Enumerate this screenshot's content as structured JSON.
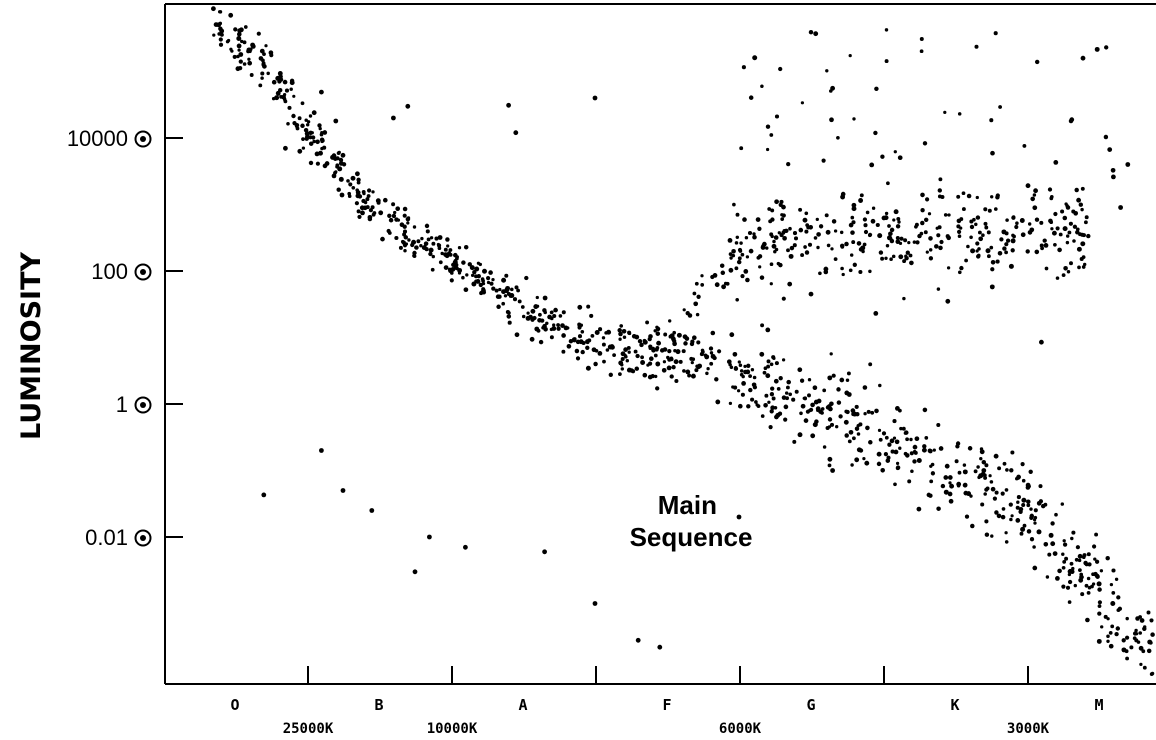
{
  "chart_data": {
    "type": "scatter",
    "title": "",
    "ylabel": "LUMINOSITY",
    "xlabel": "",
    "y_scale": "log",
    "ylim": [
      0.0002,
      1000000
    ],
    "sun_symbol": "⊙",
    "y_ticks": [
      {
        "value": 10000,
        "label": "10000"
      },
      {
        "value": 100,
        "label": "100"
      },
      {
        "value": 1,
        "label": "1"
      },
      {
        "value": 0.01,
        "label": "0.01"
      }
    ],
    "spectral_classes": [
      "O",
      "B",
      "A",
      "F",
      "G",
      "K",
      "M"
    ],
    "temperature_labels": [
      {
        "label": "25000K",
        "temperature_K": 25000
      },
      {
        "label": "10000K",
        "temperature_K": 10000
      },
      {
        "label": "6000K",
        "temperature_K": 6000
      },
      {
        "label": "3000K",
        "temperature_K": 3000
      }
    ],
    "annotations": [
      {
        "text": "Main Sequence",
        "lines": [
          "Main",
          "Sequence"
        ]
      }
    ],
    "grid": false,
    "legend": "none",
    "series": [
      {
        "x_units": "spectral class position (O=0 ... M=6)",
        "y_units": "solar luminosity",
        "points": [
          [
            -0.15,
            880000
          ],
          [
            -0.03,
            700000
          ],
          [
            0.04,
            180000
          ],
          [
            0.02,
            110000
          ],
          [
            0.3,
            47000
          ],
          [
            0.6,
            49000
          ],
          [
            0.55,
            24000
          ],
          [
            0.7,
            18000
          ],
          [
            0.75,
            5500
          ],
          [
            0.85,
            2900
          ],
          [
            1.2,
            30000
          ],
          [
            0.35,
            7000
          ],
          [
            0.45,
            6300
          ],
          [
            1.1,
            20000
          ],
          [
            1.9,
            31000
          ],
          [
            1.95,
            12000
          ],
          [
            2.5,
            40000
          ],
          [
            0.2,
            0.043
          ],
          [
            0.6,
            0.2
          ],
          [
            0.75,
            0.05
          ],
          [
            0.95,
            0.025
          ],
          [
            1.25,
            0.003
          ],
          [
            1.35,
            0.01
          ],
          [
            1.6,
            0.007
          ],
          [
            2.15,
            0.006
          ],
          [
            2.5,
            0.001
          ],
          [
            2.8,
            0.00028
          ],
          [
            2.95,
            0.00022
          ],
          [
            3.5,
            0.02
          ],
          [
            3.45,
            11
          ],
          [
            3.7,
            13
          ],
          [
            4.0,
            45
          ],
          [
            4.45,
            23
          ],
          [
            4.95,
            35
          ],
          [
            4.6,
            0.86
          ],
          [
            5.2,
            0.1
          ],
          [
            5.6,
            8.5
          ],
          [
            4.05,
            0.85
          ],
          [
            4.15,
            0.1
          ],
          [
            5.5,
            0.0
          ],
          [
            6.4,
            2800
          ],
          [
            6.1,
            2600
          ],
          [
            6.2,
            4000
          ],
          [
            5.7,
            4300
          ],
          [
            6.15,
            900
          ]
        ]
      }
    ]
  }
}
